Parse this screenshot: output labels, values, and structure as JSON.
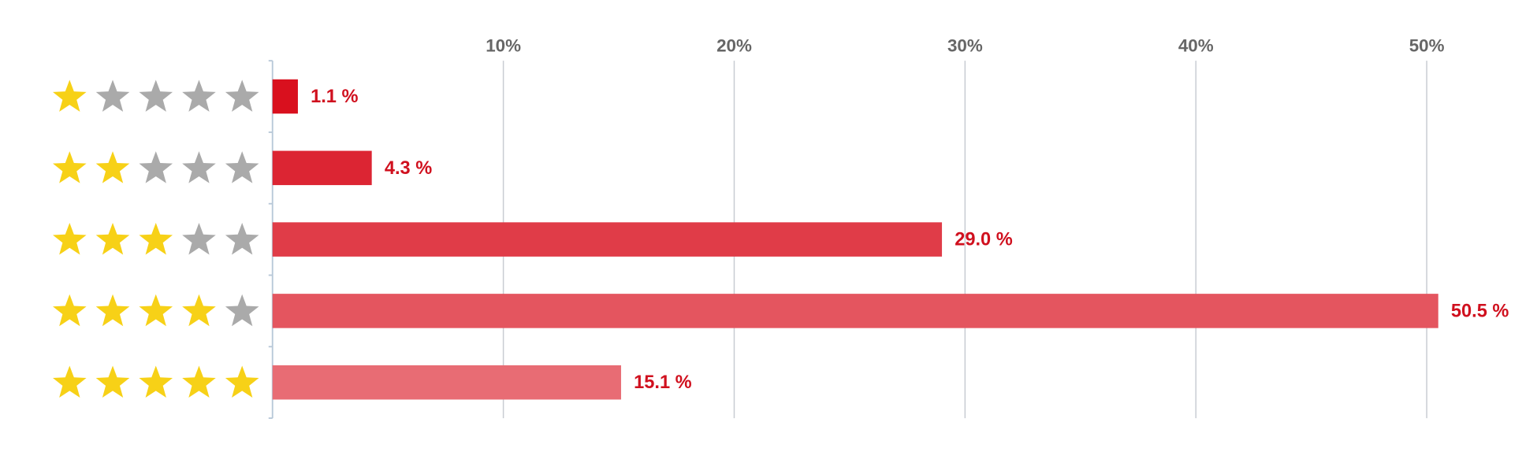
{
  "chart_data": {
    "type": "bar",
    "orientation": "horizontal",
    "stars": [
      1,
      2,
      3,
      4,
      5
    ],
    "max_stars": 5,
    "values": [
      1.1,
      4.3,
      29.0,
      50.5,
      15.1
    ],
    "value_labels": [
      "1.1 %",
      "4.3 %",
      "29.0 %",
      "50.5 %",
      "15.1 %"
    ],
    "colors": [
      "#d9101e",
      "#dc2533",
      "#e03c48",
      "#e4555f",
      "#e86c74"
    ],
    "xlim": [
      0,
      53
    ],
    "xticks": [
      {
        "value": 10,
        "label": "10%"
      },
      {
        "value": 20,
        "label": "20%"
      },
      {
        "value": 30,
        "label": "30%"
      },
      {
        "value": 40,
        "label": "40%"
      },
      {
        "value": 50,
        "label": "50%"
      }
    ],
    "grid": true
  }
}
